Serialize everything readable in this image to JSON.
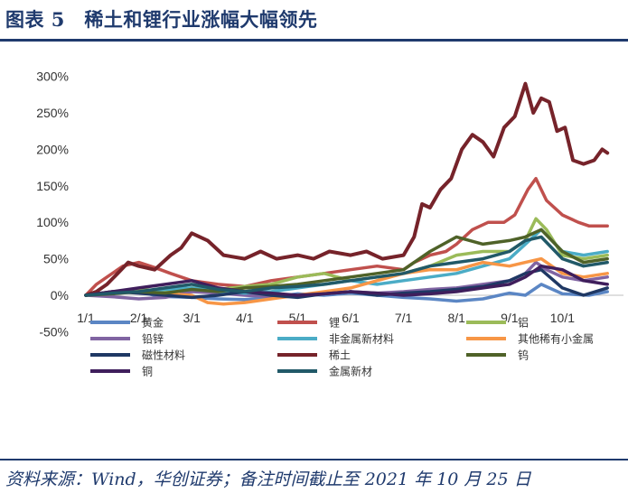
{
  "header": {
    "title": "图表 5　稀土和锂行业涨幅大幅领先"
  },
  "footer": {
    "source": "资料来源：Wind，华创证券；备注时间截止至 2021 年 10 月 25 日"
  },
  "chart_data": {
    "type": "line",
    "title": "图表 5　稀土和锂行业涨幅大幅领先",
    "xlabel": "",
    "ylabel": "",
    "ylim": [
      -50,
      300
    ],
    "yticks": [
      "300%",
      "250%",
      "200%",
      "150%",
      "100%",
      "50%",
      "0%",
      "-50%"
    ],
    "ytick_values": [
      300,
      250,
      200,
      150,
      100,
      50,
      0,
      -50
    ],
    "xticks": [
      "1/1",
      "2/1",
      "3/1",
      "4/1",
      "5/1",
      "6/1",
      "7/1",
      "8/1",
      "9/1",
      "10/1"
    ],
    "xtick_values": [
      0,
      1,
      2,
      3,
      4,
      5,
      6,
      7,
      8,
      9
    ],
    "x_unit": "month index (0 = 1/1)",
    "grid": false,
    "legend_position": "bottom",
    "series": [
      {
        "name": "黄金",
        "color": "#5b86c4",
        "x": [
          0.0,
          0.3,
          0.6,
          1.0,
          1.3,
          1.6,
          2.0,
          2.5,
          3.0,
          3.5,
          4.0,
          4.5,
          5.0,
          5.5,
          6.0,
          6.5,
          7.0,
          7.5,
          8.0,
          8.3,
          8.6,
          9.0,
          9.5,
          9.85
        ],
        "y": [
          0,
          2,
          3,
          5,
          0,
          -2,
          -3,
          -5,
          -6,
          -3,
          2,
          0,
          3,
          0,
          -3,
          -5,
          -8,
          -5,
          3,
          0,
          15,
          2,
          0,
          5
        ]
      },
      {
        "name": "锂",
        "color": "#c0504d",
        "x": [
          0.0,
          0.2,
          0.4,
          0.7,
          1.0,
          1.3,
          1.6,
          2.0,
          2.5,
          3.0,
          3.5,
          4.0,
          4.5,
          5.0,
          5.5,
          6.0,
          6.2,
          6.5,
          6.8,
          7.0,
          7.3,
          7.6,
          7.9,
          8.1,
          8.35,
          8.5,
          8.7,
          9.0,
          9.3,
          9.5,
          9.85
        ],
        "y": [
          0,
          15,
          25,
          40,
          45,
          38,
          30,
          20,
          15,
          12,
          20,
          25,
          30,
          35,
          40,
          35,
          45,
          55,
          60,
          70,
          90,
          100,
          100,
          110,
          145,
          160,
          130,
          110,
          100,
          95,
          95
        ]
      },
      {
        "name": "铝",
        "color": "#9bbb59",
        "x": [
          0.0,
          0.5,
          1.0,
          1.5,
          2.0,
          2.5,
          3.0,
          3.5,
          4.0,
          4.5,
          5.0,
          5.5,
          6.0,
          6.5,
          7.0,
          7.5,
          8.0,
          8.3,
          8.5,
          8.7,
          9.0,
          9.4,
          9.85
        ],
        "y": [
          0,
          5,
          8,
          6,
          10,
          8,
          12,
          15,
          25,
          30,
          20,
          25,
          30,
          40,
          55,
          60,
          60,
          75,
          105,
          90,
          55,
          50,
          55
        ]
      },
      {
        "name": "铅锌",
        "color": "#8064a2",
        "x": [
          0.0,
          0.5,
          1.0,
          1.5,
          2.0,
          2.5,
          3.0,
          3.5,
          4.0,
          4.5,
          5.0,
          5.5,
          6.0,
          6.5,
          7.0,
          7.5,
          8.0,
          8.3,
          8.5,
          8.7,
          9.0,
          9.4,
          9.85
        ],
        "y": [
          0,
          -2,
          -5,
          -3,
          5,
          3,
          0,
          -2,
          0,
          2,
          5,
          3,
          5,
          8,
          10,
          15,
          20,
          30,
          45,
          35,
          25,
          20,
          25
        ]
      },
      {
        "name": "非金属新材料",
        "color": "#4bacc6",
        "x": [
          0.0,
          0.5,
          1.0,
          1.5,
          2.0,
          2.5,
          3.0,
          3.5,
          4.0,
          4.5,
          5.0,
          5.5,
          6.0,
          6.5,
          7.0,
          7.5,
          8.0,
          8.3,
          8.6,
          9.0,
          9.4,
          9.85
        ],
        "y": [
          0,
          3,
          5,
          8,
          10,
          5,
          3,
          5,
          10,
          15,
          20,
          15,
          20,
          25,
          30,
          40,
          50,
          70,
          90,
          60,
          55,
          60
        ]
      },
      {
        "name": "其他稀有小金属",
        "color": "#f79646",
        "x": [
          0.0,
          0.5,
          1.0,
          1.5,
          2.0,
          2.3,
          2.6,
          3.0,
          3.5,
          4.0,
          4.5,
          5.0,
          5.5,
          6.0,
          6.5,
          7.0,
          7.5,
          8.0,
          8.3,
          8.6,
          9.0,
          9.4,
          9.85
        ],
        "y": [
          0,
          3,
          5,
          2,
          0,
          -10,
          -12,
          -10,
          -5,
          0,
          5,
          10,
          20,
          30,
          35,
          35,
          45,
          40,
          45,
          50,
          30,
          25,
          30
        ]
      },
      {
        "name": "磁性材料",
        "color": "#1f3864",
        "x": [
          0.0,
          0.5,
          1.0,
          1.5,
          2.0,
          2.5,
          3.0,
          3.5,
          4.0,
          4.5,
          5.0,
          5.5,
          6.0,
          6.5,
          7.0,
          7.5,
          8.0,
          8.3,
          8.6,
          9.0,
          9.4,
          9.85
        ],
        "y": [
          0,
          5,
          3,
          0,
          -3,
          0,
          5,
          0,
          -3,
          2,
          5,
          0,
          3,
          5,
          8,
          12,
          20,
          30,
          35,
          10,
          0,
          10
        ]
      },
      {
        "name": "稀土",
        "color": "#76232a",
        "x": [
          0.0,
          0.2,
          0.4,
          0.6,
          0.8,
          1.0,
          1.3,
          1.6,
          1.8,
          2.0,
          2.3,
          2.6,
          3.0,
          3.3,
          3.6,
          4.0,
          4.3,
          4.6,
          5.0,
          5.3,
          5.6,
          6.0,
          6.2,
          6.35,
          6.5,
          6.7,
          6.9,
          7.1,
          7.3,
          7.5,
          7.7,
          7.9,
          8.1,
          8.3,
          8.45,
          8.6,
          8.75,
          8.9,
          9.05,
          9.2,
          9.4,
          9.6,
          9.75,
          9.85
        ],
        "y": [
          0,
          5,
          15,
          30,
          45,
          40,
          35,
          55,
          65,
          85,
          75,
          55,
          50,
          60,
          50,
          55,
          50,
          60,
          55,
          60,
          50,
          55,
          80,
          125,
          120,
          145,
          160,
          200,
          220,
          210,
          190,
          230,
          245,
          290,
          250,
          270,
          265,
          225,
          230,
          185,
          180,
          185,
          200,
          195
        ]
      },
      {
        "name": "钨",
        "color": "#4f6228",
        "x": [
          0.0,
          0.5,
          1.0,
          1.5,
          2.0,
          2.5,
          3.0,
          3.5,
          4.0,
          4.5,
          5.0,
          5.5,
          6.0,
          6.5,
          7.0,
          7.5,
          8.0,
          8.3,
          8.6,
          9.0,
          9.4,
          9.85
        ],
        "y": [
          0,
          2,
          5,
          3,
          8,
          5,
          10,
          12,
          15,
          20,
          25,
          30,
          35,
          60,
          80,
          70,
          75,
          80,
          90,
          60,
          45,
          50
        ]
      },
      {
        "name": "铜",
        "color": "#3f1e5c",
        "x": [
          0.0,
          0.5,
          1.0,
          1.5,
          2.0,
          2.5,
          3.0,
          3.5,
          4.0,
          4.5,
          5.0,
          5.5,
          6.0,
          6.5,
          7.0,
          7.5,
          8.0,
          8.3,
          8.6,
          9.0,
          9.4,
          9.85
        ],
        "y": [
          0,
          5,
          10,
          15,
          20,
          10,
          5,
          3,
          0,
          2,
          5,
          3,
          0,
          2,
          5,
          10,
          15,
          25,
          40,
          35,
          20,
          15
        ]
      },
      {
        "name": "金属新材",
        "color": "#215968",
        "x": [
          0.0,
          0.5,
          1.0,
          1.5,
          2.0,
          2.5,
          3.0,
          3.5,
          4.0,
          4.5,
          5.0,
          5.5,
          6.0,
          6.5,
          7.0,
          7.5,
          8.0,
          8.3,
          8.6,
          9.0,
          9.4,
          9.85
        ],
        "y": [
          0,
          3,
          5,
          10,
          15,
          8,
          5,
          10,
          12,
          15,
          20,
          25,
          30,
          40,
          45,
          50,
          60,
          75,
          80,
          50,
          40,
          45
        ]
      }
    ]
  }
}
